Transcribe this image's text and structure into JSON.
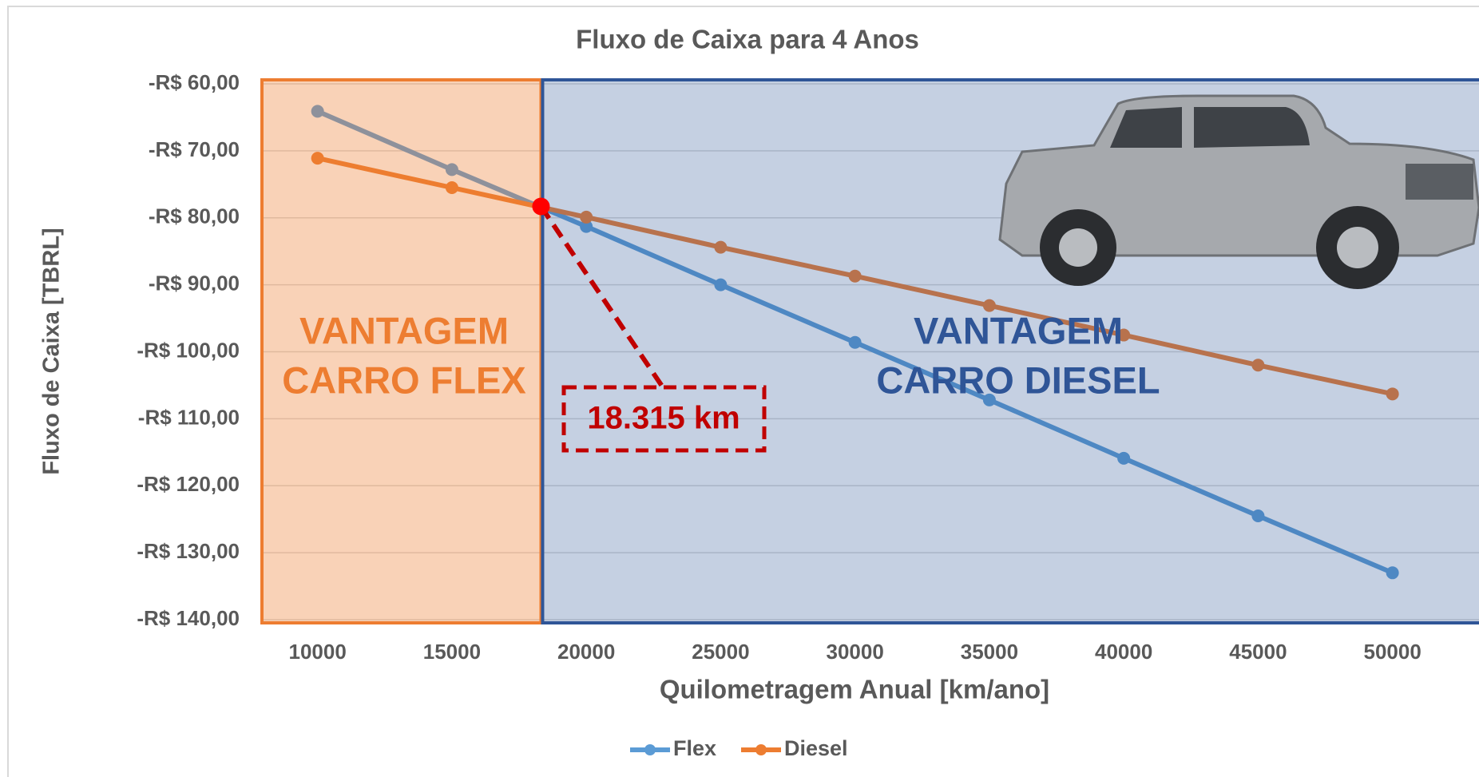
{
  "chart_data": {
    "type": "line",
    "title": "Fluxo de Caixa para 4 Anos",
    "x_label": "Quilometragem Anual [km/ano]",
    "y_label": "Fluxo de Caixa [TBRL]",
    "x": [
      10000,
      15000,
      20000,
      25000,
      30000,
      35000,
      40000,
      45000,
      50000
    ],
    "series": [
      {
        "name": "Flex",
        "color": "#5b9bd5",
        "values": [
          -64.1,
          -72.8,
          -81.3,
          -90.0,
          -98.6,
          -107.2,
          -115.9,
          -124.5,
          -133.0
        ]
      },
      {
        "name": "Diesel",
        "color": "#ed7d31",
        "values": [
          -71.1,
          -75.5,
          -79.9,
          -84.4,
          -88.7,
          -93.1,
          -97.5,
          -102.0,
          -106.3
        ]
      }
    ],
    "xlim": [
      7930,
      53220
    ],
    "xticks": [
      10000,
      15000,
      20000,
      25000,
      30000,
      35000,
      40000,
      45000,
      50000
    ],
    "ylim": [
      -140,
      -60
    ],
    "yticks": [
      {
        "value": -60,
        "label": "-R$ 60,00"
      },
      {
        "value": -70,
        "label": "-R$ 70,00"
      },
      {
        "value": -80,
        "label": "-R$ 80,00"
      },
      {
        "value": -90,
        "label": "-R$ 90,00"
      },
      {
        "value": -100,
        "label": "-R$ 100,00"
      },
      {
        "value": -110,
        "label": "-R$ 110,00"
      },
      {
        "value": -120,
        "label": "-R$ 120,00"
      },
      {
        "value": -130,
        "label": "-R$ 130,00"
      },
      {
        "value": -140,
        "label": "-R$ 140,00"
      }
    ],
    "grid": true,
    "legend": "bottom",
    "crossover": {
      "x": 18315,
      "y": -78.3,
      "label": "18.315 km",
      "color": "#c00000"
    },
    "regions": [
      {
        "lines": [
          "VANTAGEM",
          "CARRO FLEX"
        ],
        "color": "#ed7d31"
      },
      {
        "lines": [
          "VANTAGEM",
          "CARRO DIESEL"
        ],
        "color": "#2f5597"
      }
    ]
  }
}
